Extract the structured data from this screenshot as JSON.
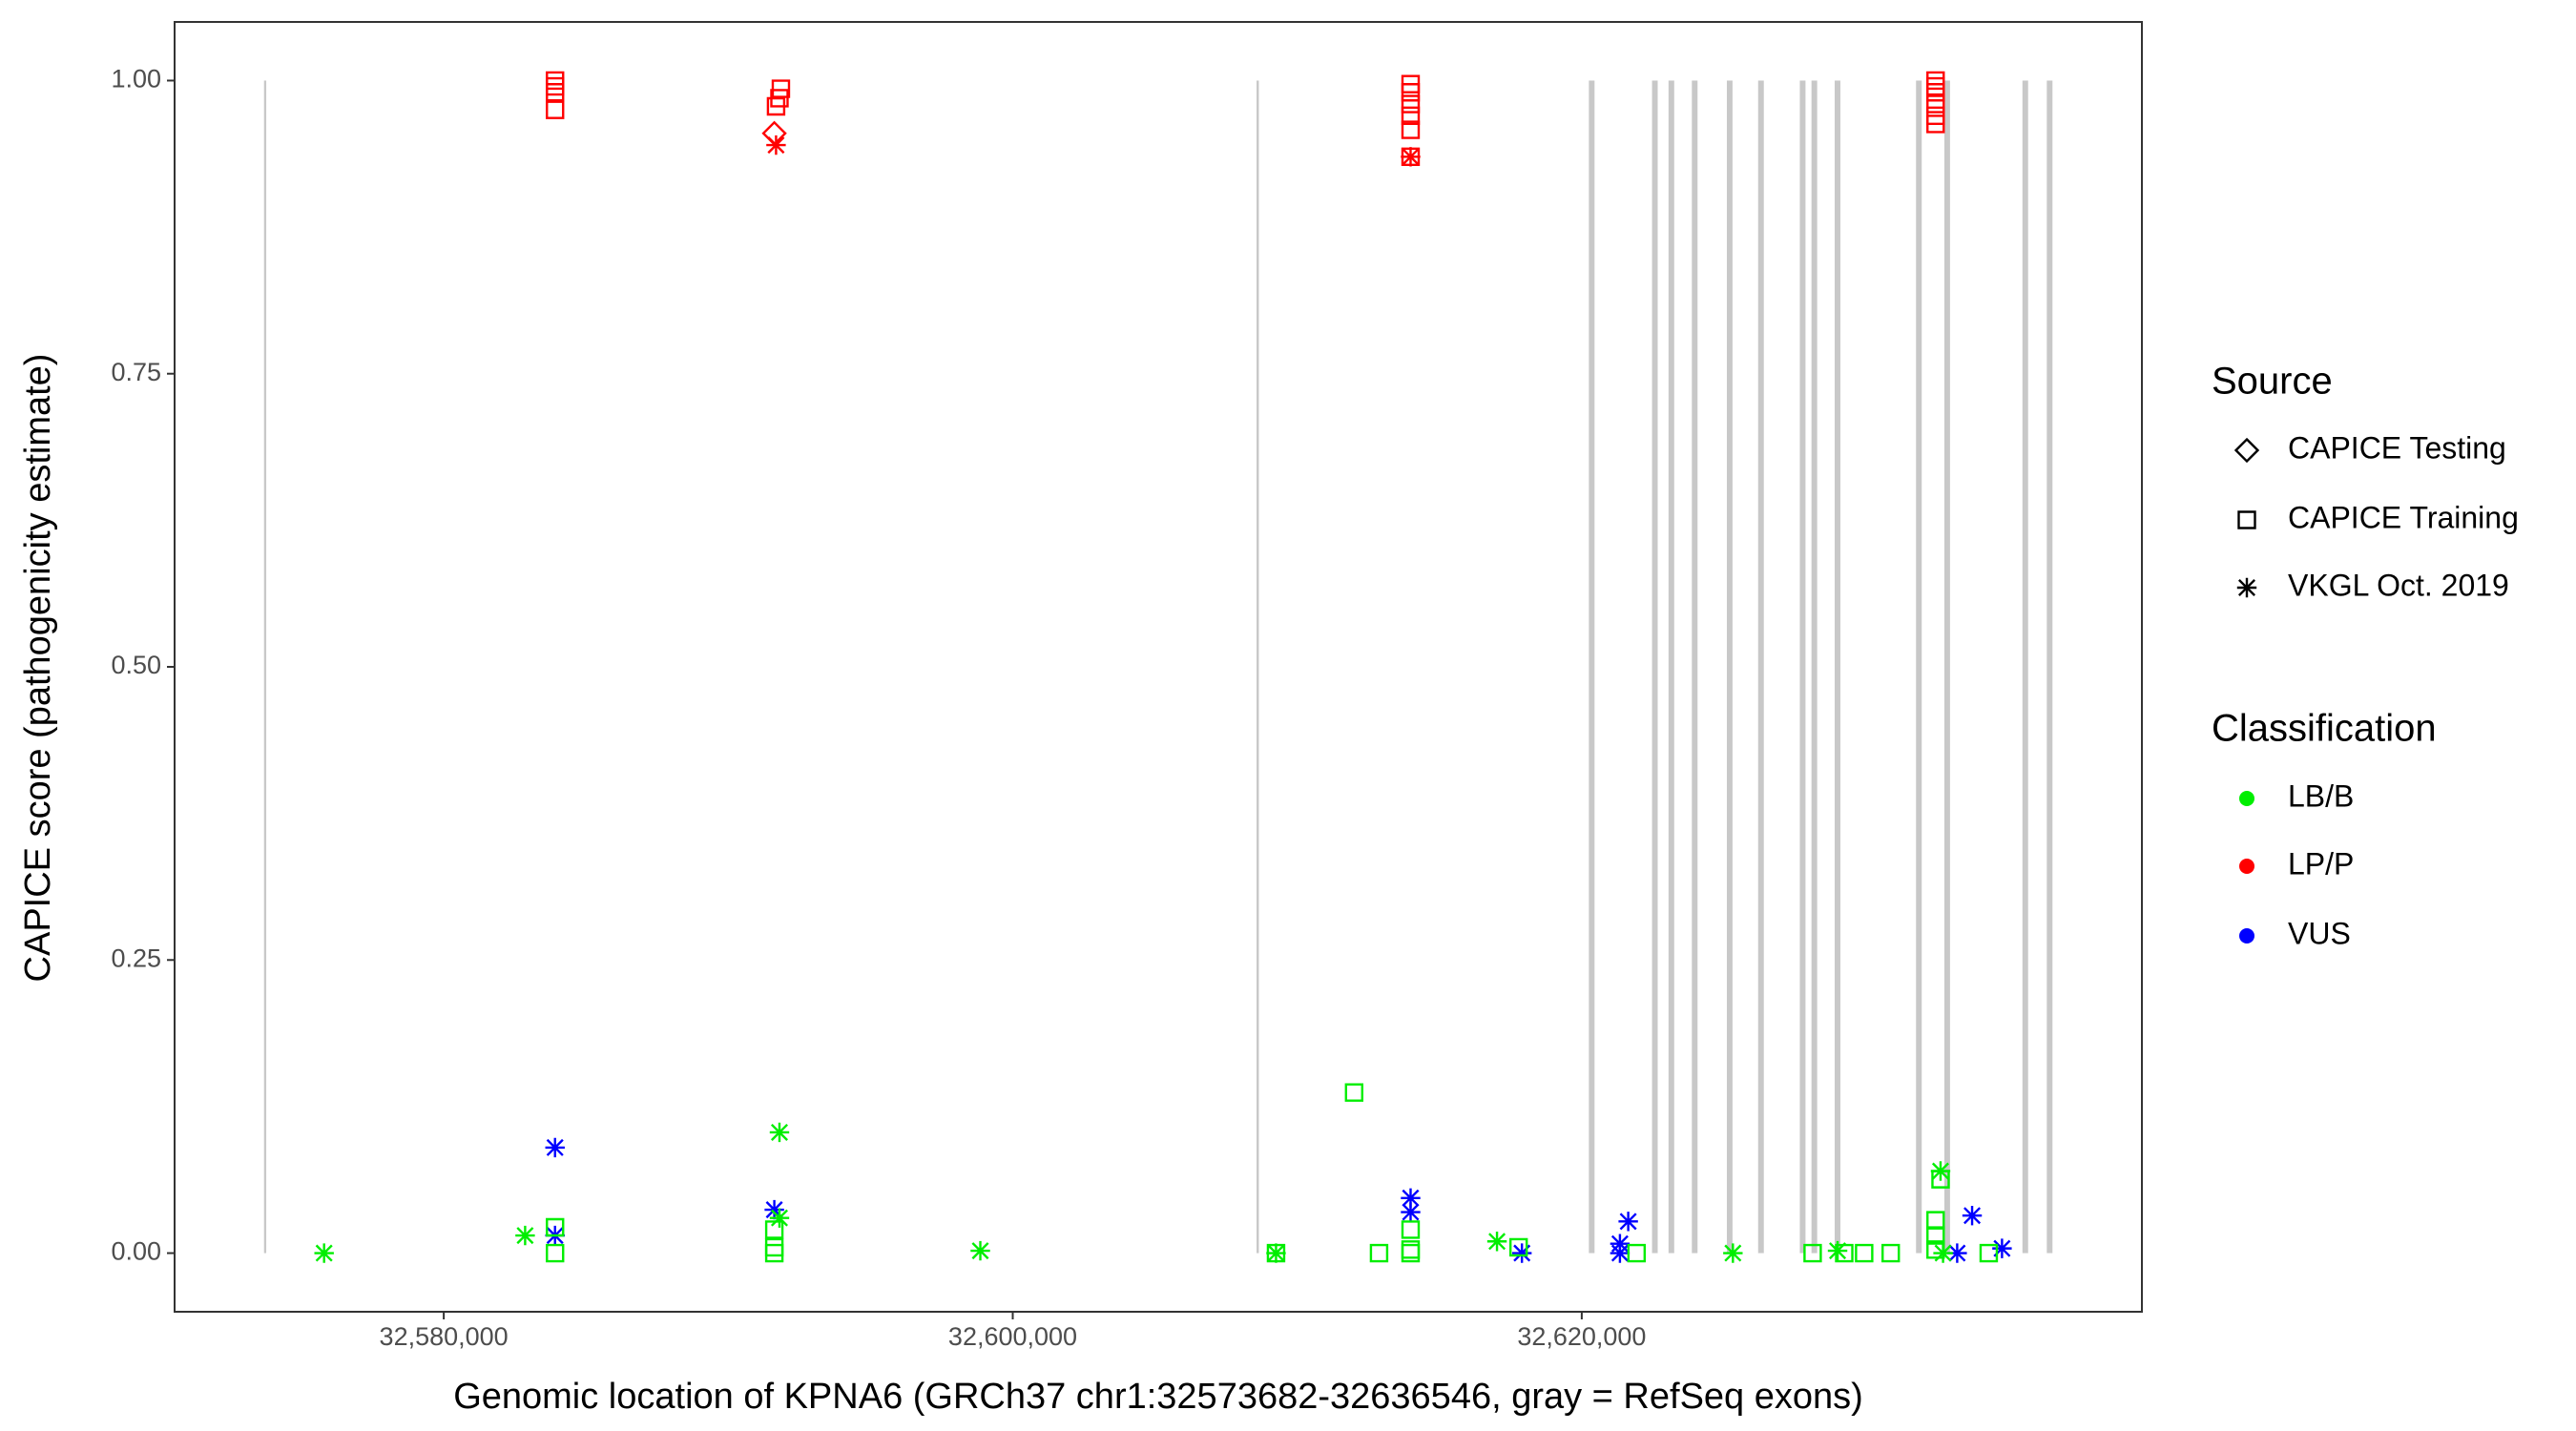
{
  "chart_data": {
    "type": "scatter",
    "x_label": "Genomic location of KPNA6 (GRCh37 chr1:32573682-32636546, gray = RefSeq exons)",
    "y_label": "CAPICE score (pathogenicity estimate)",
    "xlim": [
      32570539,
      32639689
    ],
    "ylim": [
      -0.05,
      1.05
    ],
    "xticks": [
      {
        "value": 32580000,
        "label": "32,580,000"
      },
      {
        "value": 32600000,
        "label": "32,600,000"
      },
      {
        "value": 32620000,
        "label": "32,620,000"
      }
    ],
    "yticks": [
      {
        "value": 0,
        "label": "0.00"
      },
      {
        "value": 0.25,
        "label": "0.25"
      },
      {
        "value": 0.5,
        "label": "0.50"
      },
      {
        "value": 0.75,
        "label": "0.75"
      },
      {
        "value": 1,
        "label": "1.00"
      }
    ],
    "exon_color": "#c8c8c8",
    "exons": [
      [
        32573682,
        32573760
      ],
      [
        32608570,
        32608650
      ],
      [
        32620250,
        32620450
      ],
      [
        32622470,
        32622670
      ],
      [
        32623050,
        32623250
      ],
      [
        32623870,
        32624070
      ],
      [
        32625100,
        32625300
      ],
      [
        32626200,
        32626400
      ],
      [
        32627665,
        32627865
      ],
      [
        32628075,
        32628275
      ],
      [
        32628890,
        32629090
      ],
      [
        32631750,
        32631950
      ],
      [
        32632745,
        32632945
      ],
      [
        32635490,
        32635690
      ],
      [
        32636346,
        32636546
      ]
    ],
    "legend_source": {
      "title": "Source",
      "items": [
        {
          "name": "CAPICE Testing",
          "shape": "diamond"
        },
        {
          "name": "CAPICE Training",
          "shape": "square"
        },
        {
          "name": "VKGL Oct. 2019",
          "shape": "asterisk"
        }
      ]
    },
    "legend_classification": {
      "title": "Classification",
      "items": [
        {
          "name": "LB/B",
          "color": "#00ee00"
        },
        {
          "name": "LP/P",
          "color": "#ff0000"
        },
        {
          "name": "VUS",
          "color": "#0000ff"
        }
      ]
    },
    "groups": [
      {
        "source": "CAPICE Training",
        "classification": "LP/P",
        "x": [
          32583911,
          32583911,
          32583911,
          32583911,
          32591680,
          32591800,
          32591850,
          32613984,
          32613984,
          32613984,
          32613984,
          32613984,
          32613984,
          32632437,
          32632437,
          32632437,
          32632437,
          32632437,
          32632437
        ],
        "values": [
          1.0,
          0.995,
          0.99,
          0.975,
          0.978,
          0.985,
          0.993,
          0.997,
          0.99,
          0.98,
          0.97,
          0.958,
          0.935,
          1.0,
          0.995,
          0.99,
          0.98,
          0.97,
          0.963
        ]
      },
      {
        "source": "CAPICE Testing",
        "classification": "LP/P",
        "x": [
          32591619
        ],
        "values": [
          0.955
        ]
      },
      {
        "source": "VKGL Oct. 2019",
        "classification": "LP/P",
        "x": [
          32591680,
          32613984
        ],
        "values": [
          0.945,
          0.935
        ]
      },
      {
        "source": "VKGL Oct. 2019",
        "classification": "VUS",
        "x": [
          32583911,
          32583911,
          32591619,
          32613984,
          32613984,
          32617897,
          32621342,
          32621342,
          32621634,
          32633196,
          32633721,
          32634772
        ],
        "values": [
          0.09,
          0.015,
          0.037,
          0.047,
          0.035,
          0.0,
          0.008,
          0.0,
          0.027,
          0.0,
          0.032,
          0.004
        ]
      },
      {
        "source": "VKGL Oct. 2019",
        "classification": "LB/B",
        "x": [
          32575794,
          32582860,
          32591800,
          32591800,
          32598860,
          32609254,
          32617021,
          32625313,
          32628992,
          32632612,
          32632700
        ],
        "values": [
          0.0,
          0.015,
          0.103,
          0.03,
          0.002,
          0.0,
          0.01,
          0.0,
          0.002,
          0.07,
          0.0
        ]
      },
      {
        "source": "CAPICE Training",
        "classification": "LB/B",
        "x": [
          32583911,
          32583911,
          32591619,
          32591619,
          32591619,
          32609254,
          32611999,
          32612875,
          32613984,
          32613984,
          32613984,
          32617780,
          32621926,
          32628116,
          32629226,
          32629926,
          32630860,
          32632437,
          32632437,
          32632437,
          32632612,
          32634305
        ],
        "values": [
          0.022,
          0.0,
          0.02,
          0.005,
          0.0,
          0.0,
          0.137,
          0.0,
          0.02,
          0.003,
          0.0,
          0.005,
          0.0,
          0.0,
          0.0,
          0.0,
          0.0,
          0.028,
          0.015,
          0.003,
          0.063,
          0.0
        ]
      }
    ]
  }
}
